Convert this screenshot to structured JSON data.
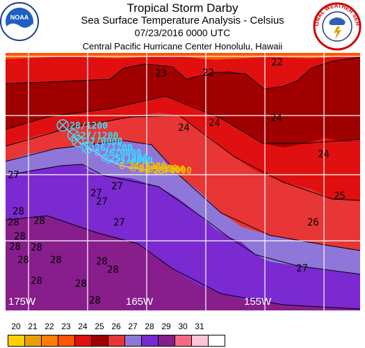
{
  "header": {
    "title": "Tropical Storm Darby",
    "subtitle": "Sea Surface Temperature Analysis - Celsius",
    "datetime": "07/23/2016 0000 UTC",
    "center": "Central Pacific Hurricane Center  Honolulu, Hawaii"
  },
  "logos": {
    "noaa_text": "NOAA",
    "nws_text": "NATIONAL WEATHER SERVICE"
  },
  "map": {
    "longitude_labels": [
      "175W",
      "165W",
      "155W"
    ],
    "isotherm_labels": [
      "23",
      "22",
      "22",
      "24",
      "24",
      "24",
      "24",
      "25",
      "26",
      "27",
      "27",
      "27",
      "27",
      "27",
      "28",
      "28",
      "28",
      "28",
      "28",
      "28",
      "28",
      "28",
      "28",
      "28",
      "28",
      "28",
      "28",
      "27"
    ],
    "track_points": [
      {
        "label": "28/1200",
        "color": "#33e0ff",
        "lon": -169.2,
        "lat": 24.6
      },
      {
        "label": "27/1200",
        "color": "#33e0ff",
        "lon": -167.4,
        "lat": 23.2
      },
      {
        "label": "27/0000",
        "color": "#33e0ff",
        "lon": -166.7,
        "lat": 22.4
      },
      {
        "label": "26/1200",
        "color": "#33e0ff",
        "lon": -165.0,
        "lat": 21.5
      },
      {
        "label": "26/0000",
        "color": "#33e0ff",
        "lon": -163.5,
        "lat": 20.8
      },
      {
        "label": "25/1200",
        "color": "#33e0ff",
        "lon": -162.4,
        "lat": 20.0
      },
      {
        "label": "25/0000",
        "color": "#33e0ff",
        "lon": -161.6,
        "lat": 19.7
      },
      {
        "label": "24/1200",
        "color": "#f0c000",
        "lon": -159.3,
        "lat": 18.9
      },
      {
        "label": "24/0000",
        "color": "#f0c000",
        "lon": -157.4,
        "lat": 18.6
      },
      {
        "label": "23/1200",
        "color": "#f0c000",
        "lon": -156.1,
        "lat": 18.5
      },
      {
        "label": "23/0000",
        "color": "#f0c000",
        "lon": -155.0,
        "lat": 18.3
      }
    ]
  },
  "legend": {
    "entries": [
      {
        "label": "20",
        "color": "#ffd000"
      },
      {
        "label": "21",
        "color": "#e8a000"
      },
      {
        "label": "22",
        "color": "#ff7e00"
      },
      {
        "label": "23",
        "color": "#ff5500"
      },
      {
        "label": "24",
        "color": "#e01010"
      },
      {
        "label": "25",
        "color": "#a00000"
      },
      {
        "label": "26",
        "color": "#e83535"
      },
      {
        "label": "27",
        "color": "#8f77d9"
      },
      {
        "label": "28",
        "color": "#7a2ad0"
      },
      {
        "label": "29",
        "color": "#881e8c"
      },
      {
        "label": "30",
        "color": "#f46a84"
      },
      {
        "label": "31",
        "color": "#ffc6d8"
      },
      {
        "label": "",
        "color": "#ffffff"
      }
    ]
  }
}
